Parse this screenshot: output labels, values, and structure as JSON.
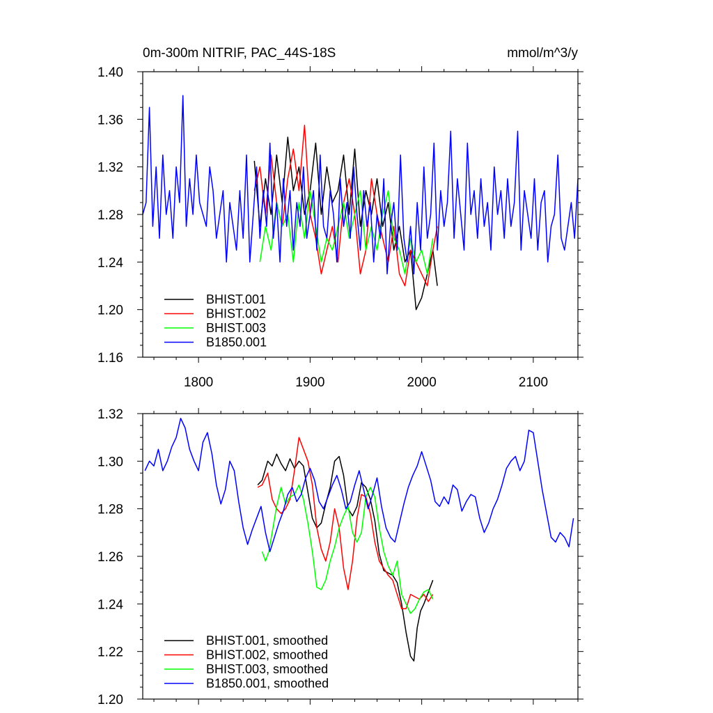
{
  "chart_data": [
    {
      "type": "line",
      "title": "0m-300m NITRIF, PAC_44S-18S",
      "units": "mmol/m^3/y",
      "xlim": [
        1750,
        2140
      ],
      "ylim": [
        1.16,
        1.4
      ],
      "x_ticks": [
        1800,
        1900,
        2000,
        2100
      ],
      "x_tick_labels": [
        "1800",
        "1900",
        "2000",
        "2100"
      ],
      "y_ticks": [
        1.16,
        1.2,
        1.24,
        1.28,
        1.32,
        1.36,
        1.4
      ],
      "y_tick_labels": [
        "1.16",
        "1.20",
        "1.24",
        "1.28",
        "1.32",
        "1.36",
        "1.40"
      ],
      "legend_position": "bottom-left",
      "series": [
        {
          "name": "BHIST.001",
          "color": "#000000",
          "x": [
            1850,
            1855,
            1860,
            1865,
            1870,
            1875,
            1880,
            1885,
            1890,
            1895,
            1900,
            1905,
            1910,
            1915,
            1920,
            1925,
            1930,
            1935,
            1940,
            1945,
            1950,
            1955,
            1960,
            1965,
            1970,
            1975,
            1980,
            1985,
            1990,
            1995,
            2000,
            2005,
            2010,
            2014
          ],
          "y": [
            1.325,
            1.27,
            1.31,
            1.28,
            1.33,
            1.29,
            1.345,
            1.3,
            1.32,
            1.28,
            1.3,
            1.34,
            1.28,
            1.32,
            1.29,
            1.3,
            1.33,
            1.28,
            1.335,
            1.27,
            1.3,
            1.28,
            1.31,
            1.27,
            1.29,
            1.25,
            1.27,
            1.24,
            1.25,
            1.2,
            1.21,
            1.23,
            1.25,
            1.22
          ]
        },
        {
          "name": "BHIST.002",
          "color": "#ff0000",
          "x": [
            1850,
            1855,
            1860,
            1865,
            1870,
            1875,
            1880,
            1885,
            1890,
            1895,
            1900,
            1905,
            1910,
            1915,
            1920,
            1925,
            1930,
            1935,
            1940,
            1945,
            1950,
            1955,
            1960,
            1965,
            1970,
            1975,
            1980,
            1985,
            1990,
            1995,
            2000,
            2005,
            2010,
            2014
          ],
          "y": [
            1.3,
            1.32,
            1.28,
            1.33,
            1.29,
            1.27,
            1.31,
            1.335,
            1.3,
            1.355,
            1.28,
            1.26,
            1.23,
            1.25,
            1.27,
            1.24,
            1.29,
            1.31,
            1.28,
            1.23,
            1.25,
            1.31,
            1.28,
            1.26,
            1.24,
            1.27,
            1.23,
            1.22,
            1.25,
            1.24,
            1.23,
            1.22,
            1.25,
            1.27
          ]
        },
        {
          "name": "BHIST.003",
          "color": "#00ff00",
          "x": [
            1855,
            1860,
            1865,
            1870,
            1875,
            1880,
            1885,
            1890,
            1895,
            1900,
            1905,
            1910,
            1915,
            1920,
            1925,
            1930,
            1935,
            1940,
            1945,
            1950,
            1955,
            1960,
            1965,
            1970,
            1975,
            1980,
            1985,
            1990,
            1995,
            2000,
            2005,
            2010
          ],
          "y": [
            1.24,
            1.27,
            1.25,
            1.29,
            1.27,
            1.28,
            1.24,
            1.29,
            1.26,
            1.3,
            1.27,
            1.24,
            1.26,
            1.25,
            1.27,
            1.29,
            1.26,
            1.28,
            1.3,
            1.25,
            1.27,
            1.25,
            1.28,
            1.3,
            1.26,
            1.25,
            1.23,
            1.26,
            1.24,
            1.25,
            1.23,
            1.26
          ]
        },
        {
          "name": "B1850.001",
          "color": "#0000ff",
          "x": [
            1750,
            1753,
            1756,
            1759,
            1762,
            1765,
            1768,
            1771,
            1774,
            1777,
            1780,
            1783,
            1786,
            1789,
            1792,
            1795,
            1798,
            1801,
            1804,
            1807,
            1810,
            1813,
            1816,
            1819,
            1822,
            1825,
            1828,
            1831,
            1834,
            1837,
            1840,
            1843,
            1846,
            1849,
            1852,
            1855,
            1858,
            1861,
            1864,
            1867,
            1870,
            1873,
            1876,
            1879,
            1882,
            1885,
            1888,
            1891,
            1894,
            1897,
            1900,
            1903,
            1906,
            1909,
            1912,
            1915,
            1918,
            1921,
            1924,
            1927,
            1930,
            1933,
            1936,
            1939,
            1942,
            1945,
            1948,
            1951,
            1954,
            1957,
            1960,
            1963,
            1966,
            1969,
            1972,
            1975,
            1978,
            1981,
            1984,
            1987,
            1990,
            1993,
            1996,
            1999,
            2002,
            2005,
            2008,
            2011,
            2014,
            2017,
            2020,
            2023,
            2026,
            2029,
            2032,
            2035,
            2038,
            2041,
            2044,
            2047,
            2050,
            2053,
            2056,
            2059,
            2062,
            2065,
            2068,
            2071,
            2074,
            2077,
            2080,
            2083,
            2086,
            2089,
            2092,
            2095,
            2098,
            2101,
            2104,
            2107,
            2110,
            2113,
            2116,
            2119,
            2122,
            2125,
            2128,
            2131,
            2134,
            2137,
            2140
          ],
          "y": [
            1.28,
            1.29,
            1.37,
            1.27,
            1.32,
            1.26,
            1.33,
            1.28,
            1.3,
            1.26,
            1.32,
            1.29,
            1.38,
            1.27,
            1.31,
            1.28,
            1.33,
            1.29,
            1.28,
            1.27,
            1.32,
            1.3,
            1.26,
            1.28,
            1.3,
            1.24,
            1.29,
            1.27,
            1.25,
            1.3,
            1.26,
            1.33,
            1.24,
            1.28,
            1.32,
            1.26,
            1.3,
            1.27,
            1.34,
            1.26,
            1.29,
            1.24,
            1.31,
            1.27,
            1.3,
            1.25,
            1.29,
            1.27,
            1.32,
            1.26,
            1.28,
            1.3,
            1.25,
            1.33,
            1.27,
            1.26,
            1.3,
            1.28,
            1.24,
            1.31,
            1.27,
            1.29,
            1.26,
            1.32,
            1.28,
            1.25,
            1.3,
            1.27,
            1.29,
            1.24,
            1.28,
            1.26,
            1.31,
            1.23,
            1.27,
            1.29,
            1.25,
            1.33,
            1.26,
            1.24,
            1.27,
            1.23,
            1.29,
            1.25,
            1.32,
            1.26,
            1.28,
            1.34,
            1.25,
            1.3,
            1.27,
            1.29,
            1.35,
            1.26,
            1.31,
            1.28,
            1.25,
            1.34,
            1.28,
            1.3,
            1.26,
            1.31,
            1.27,
            1.29,
            1.25,
            1.32,
            1.28,
            1.3,
            1.26,
            1.31,
            1.27,
            1.29,
            1.35,
            1.25,
            1.3,
            1.28,
            1.26,
            1.31,
            1.25,
            1.29,
            1.3,
            1.24,
            1.27,
            1.28,
            1.33,
            1.26,
            1.25,
            1.27,
            1.29,
            1.26,
            1.31
          ]
        }
      ]
    },
    {
      "type": "line",
      "xlim": [
        1750,
        2140
      ],
      "ylim": [
        1.2,
        1.32
      ],
      "x_ticks": [
        1800,
        1900,
        2000,
        2100
      ],
      "y_ticks": [
        1.2,
        1.22,
        1.24,
        1.26,
        1.28,
        1.3,
        1.32
      ],
      "y_tick_labels": [
        "1.20",
        "1.22",
        "1.24",
        "1.26",
        "1.28",
        "1.30",
        "1.32"
      ],
      "legend_position": "bottom-left",
      "series": [
        {
          "name": "BHIST.001, smoothed",
          "color": "#000000",
          "x": [
            1853,
            1857,
            1862,
            1866,
            1870,
            1874,
            1878,
            1882,
            1886,
            1890,
            1894,
            1898,
            1902,
            1906,
            1910,
            1914,
            1918,
            1922,
            1926,
            1930,
            1934,
            1938,
            1942,
            1946,
            1950,
            1954,
            1958,
            1962,
            1966,
            1970,
            1974,
            1978,
            1982,
            1986,
            1990,
            1993,
            1996,
            1999,
            2002,
            2006,
            2010
          ],
          "y": [
            1.29,
            1.292,
            1.3,
            1.298,
            1.303,
            1.299,
            1.296,
            1.301,
            1.297,
            1.3,
            1.298,
            1.287,
            1.276,
            1.272,
            1.274,
            1.282,
            1.289,
            1.3,
            1.302,
            1.294,
            1.28,
            1.277,
            1.281,
            1.291,
            1.289,
            1.284,
            1.275,
            1.261,
            1.254,
            1.253,
            1.252,
            1.249,
            1.24,
            1.228,
            1.218,
            1.216,
            1.23,
            1.237,
            1.24,
            1.245,
            1.25
          ]
        },
        {
          "name": "BHIST.002, smoothed",
          "color": "#ff0000",
          "x": [
            1853,
            1857,
            1862,
            1866,
            1870,
            1874,
            1878,
            1882,
            1886,
            1890,
            1894,
            1898,
            1902,
            1906,
            1910,
            1914,
            1918,
            1922,
            1926,
            1930,
            1934,
            1938,
            1942,
            1946,
            1950,
            1954,
            1958,
            1962,
            1966,
            1970,
            1974,
            1978,
            1982,
            1986,
            1990,
            1994,
            1998,
            2002,
            2006,
            2010
          ],
          "y": [
            1.289,
            1.29,
            1.295,
            1.284,
            1.28,
            1.278,
            1.28,
            1.284,
            1.296,
            1.31,
            1.305,
            1.3,
            1.29,
            1.272,
            1.263,
            1.258,
            1.266,
            1.28,
            1.272,
            1.255,
            1.246,
            1.258,
            1.276,
            1.286,
            1.285,
            1.278,
            1.266,
            1.258,
            1.255,
            1.252,
            1.25,
            1.244,
            1.238,
            1.238,
            1.244,
            1.243,
            1.242,
            1.244,
            1.241,
            1.244
          ]
        },
        {
          "name": "BHIST.003, smoothed",
          "color": "#00ff00",
          "x": [
            1857,
            1860,
            1863,
            1866,
            1870,
            1874,
            1878,
            1882,
            1886,
            1890,
            1894,
            1898,
            1902,
            1906,
            1910,
            1914,
            1918,
            1922,
            1926,
            1930,
            1934,
            1938,
            1942,
            1946,
            1950,
            1954,
            1958,
            1962,
            1966,
            1970,
            1974,
            1978,
            1982,
            1986,
            1990,
            1994,
            1998,
            2002,
            2006,
            2010
          ],
          "y": [
            1.262,
            1.258,
            1.262,
            1.27,
            1.281,
            1.289,
            1.282,
            1.285,
            1.286,
            1.29,
            1.284,
            1.274,
            1.262,
            1.247,
            1.246,
            1.25,
            1.258,
            1.264,
            1.272,
            1.277,
            1.281,
            1.27,
            1.266,
            1.27,
            1.285,
            1.289,
            1.285,
            1.272,
            1.262,
            1.256,
            1.252,
            1.258,
            1.244,
            1.24,
            1.236,
            1.238,
            1.242,
            1.245,
            1.246,
            1.242
          ]
        },
        {
          "name": "B1850.001, smoothed",
          "color": "#0000ff",
          "x": [
            1752,
            1756,
            1760,
            1764,
            1768,
            1772,
            1776,
            1780,
            1784,
            1788,
            1792,
            1796,
            1800,
            1804,
            1808,
            1812,
            1816,
            1820,
            1824,
            1828,
            1832,
            1836,
            1840,
            1844,
            1848,
            1852,
            1856,
            1860,
            1864,
            1868,
            1872,
            1876,
            1880,
            1884,
            1888,
            1892,
            1896,
            1900,
            1904,
            1908,
            1912,
            1916,
            1920,
            1924,
            1928,
            1932,
            1936,
            1940,
            1944,
            1948,
            1952,
            1956,
            1960,
            1964,
            1968,
            1972,
            1976,
            1980,
            1984,
            1988,
            1992,
            1996,
            2000,
            2004,
            2008,
            2012,
            2016,
            2020,
            2024,
            2028,
            2032,
            2036,
            2040,
            2044,
            2048,
            2052,
            2056,
            2060,
            2064,
            2068,
            2072,
            2076,
            2080,
            2084,
            2088,
            2092,
            2096,
            2100,
            2104,
            2108,
            2112,
            2116,
            2120,
            2124,
            2128,
            2132,
            2136
          ],
          "y": [
            1.296,
            1.3,
            1.298,
            1.305,
            1.296,
            1.3,
            1.306,
            1.31,
            1.318,
            1.314,
            1.305,
            1.3,
            1.296,
            1.308,
            1.312,
            1.303,
            1.29,
            1.282,
            1.288,
            1.3,
            1.296,
            1.283,
            1.272,
            1.265,
            1.271,
            1.276,
            1.281,
            1.27,
            1.262,
            1.268,
            1.274,
            1.279,
            1.286,
            1.289,
            1.283,
            1.286,
            1.293,
            1.297,
            1.292,
            1.283,
            1.28,
            1.285,
            1.29,
            1.294,
            1.288,
            1.28,
            1.283,
            1.29,
            1.296,
            1.288,
            1.28,
            1.286,
            1.293,
            1.281,
            1.272,
            1.268,
            1.266,
            1.274,
            1.282,
            1.289,
            1.294,
            1.298,
            1.304,
            1.298,
            1.292,
            1.283,
            1.281,
            1.285,
            1.282,
            1.29,
            1.288,
            1.279,
            1.283,
            1.286,
            1.285,
            1.276,
            1.27,
            1.274,
            1.28,
            1.284,
            1.29,
            1.297,
            1.3,
            1.302,
            1.296,
            1.3,
            1.313,
            1.312,
            1.3,
            1.288,
            1.278,
            1.268,
            1.266,
            1.27,
            1.268,
            1.264,
            1.276
          ]
        }
      ]
    }
  ]
}
